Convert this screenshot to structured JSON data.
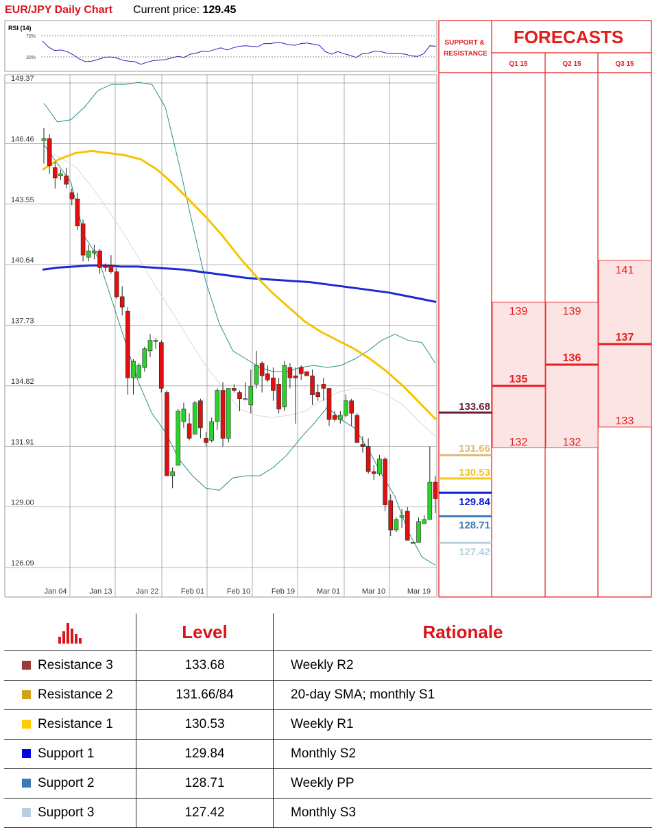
{
  "header": {
    "title": "EUR/JPY Daily Chart",
    "price_label": "Current price:",
    "price_value": "129.45"
  },
  "rsi": {
    "label": "RSI (14)",
    "level_high": "70%",
    "level_low": "30%",
    "values": [
      0.6,
      0.48,
      0.42,
      0.43,
      0.4,
      0.34,
      0.26,
      0.21,
      0.22,
      0.25,
      0.29,
      0.3,
      0.28,
      0.24,
      0.22,
      0.21,
      0.16,
      0.2,
      0.23,
      0.24,
      0.25,
      0.28,
      0.31,
      0.29,
      0.35,
      0.37,
      0.41,
      0.4,
      0.44,
      0.47,
      0.43,
      0.47,
      0.5,
      0.51,
      0.5,
      0.49,
      0.55,
      0.55,
      0.57,
      0.56,
      0.53,
      0.52,
      0.55,
      0.56,
      0.54,
      0.52,
      0.4,
      0.35,
      0.4,
      0.36,
      0.33,
      0.29,
      0.36,
      0.37,
      0.41,
      0.4,
      0.37,
      0.36,
      0.36,
      0.35,
      0.32,
      0.31,
      0.36,
      0.51,
      0.5
    ]
  },
  "chart_data": {
    "type": "candlestick",
    "title": "EUR/JPY Daily Chart",
    "y_ticks": [
      "149.37",
      "146.46",
      "143.55",
      "140.64",
      "137.73",
      "134.82",
      "131.91",
      "129.00",
      "126.09"
    ],
    "ylim": [
      125.8,
      150.3
    ],
    "x_ticks": [
      "Jan 04",
      "Jan 13",
      "Jan 22",
      "Feb 01",
      "Feb 10",
      "Feb 19",
      "Mar 01",
      "Mar 10",
      "Mar 19"
    ],
    "candles": [
      [
        146.6,
        146.7,
        145.5,
        147.2
      ],
      [
        146.7,
        145.4,
        145.0,
        146.9
      ],
      [
        145.3,
        144.8,
        144.3,
        145.6
      ],
      [
        144.9,
        145.0,
        144.7,
        145.2
      ],
      [
        144.9,
        144.5,
        144.3,
        145.3
      ],
      [
        144.1,
        143.8,
        143.5,
        144.3
      ],
      [
        143.8,
        142.5,
        142.3,
        144.1
      ],
      [
        142.6,
        141.1,
        140.8,
        142.8
      ],
      [
        141.0,
        141.3,
        140.8,
        141.6
      ],
      [
        141.2,
        141.3,
        140.9,
        141.6
      ],
      [
        141.3,
        140.5,
        140.2,
        141.4
      ],
      [
        140.6,
        140.5,
        140.3,
        140.7
      ],
      [
        140.6,
        140.3,
        140.2,
        141.1
      ],
      [
        140.3,
        139.1,
        139.0,
        140.5
      ],
      [
        139.1,
        138.6,
        138.2,
        139.6
      ],
      [
        138.4,
        135.2,
        134.4,
        138.6
      ],
      [
        135.2,
        136.0,
        134.4,
        136.1
      ],
      [
        135.2,
        135.8,
        135.2,
        135.9
      ],
      [
        135.7,
        136.6,
        135.5,
        136.7
      ],
      [
        136.5,
        137.0,
        136.2,
        137.3
      ],
      [
        137.0,
        137.0,
        136.6,
        137.1
      ],
      [
        136.9,
        134.7,
        134.5,
        137.0
      ],
      [
        134.5,
        130.5,
        130.5,
        134.6
      ],
      [
        130.5,
        130.7,
        129.9,
        130.9
      ],
      [
        131.0,
        133.6,
        131.0,
        133.7
      ],
      [
        133.1,
        133.7,
        132.8,
        134.0
      ],
      [
        133.0,
        132.3,
        132.2,
        133.5
      ],
      [
        132.5,
        134.0,
        132.5,
        134.1
      ],
      [
        134.1,
        132.8,
        132.3,
        134.2
      ],
      [
        132.3,
        132.1,
        131.9,
        132.6
      ],
      [
        132.2,
        133.1,
        132.1,
        133.3
      ],
      [
        133.1,
        134.6,
        132.7,
        134.7
      ],
      [
        134.6,
        132.3,
        131.9,
        135.0
      ],
      [
        132.3,
        134.7,
        132.1,
        134.7
      ],
      [
        134.7,
        134.6,
        134.5,
        134.9
      ],
      [
        134.5,
        134.2,
        133.6,
        134.6
      ],
      [
        134.2,
        134.2,
        134.2,
        135.0
      ],
      [
        133.9,
        134.8,
        133.5,
        135.6
      ],
      [
        134.9,
        135.8,
        134.7,
        136.5
      ],
      [
        135.9,
        135.3,
        134.5,
        136.0
      ],
      [
        135.4,
        135.1,
        135.0,
        135.8
      ],
      [
        135.2,
        134.6,
        134.1,
        135.7
      ],
      [
        134.9,
        133.7,
        133.5,
        135.2
      ],
      [
        133.8,
        135.8,
        133.6,
        136.0
      ],
      [
        135.7,
        135.2,
        134.7,
        135.9
      ],
      [
        135.3,
        135.2,
        133.0,
        135.7
      ],
      [
        135.7,
        135.4,
        135.1,
        135.8
      ],
      [
        135.5,
        135.3,
        135.3,
        135.4
      ],
      [
        135.3,
        134.4,
        133.9,
        135.6
      ],
      [
        134.5,
        134.3,
        134.1,
        134.9
      ],
      [
        134.9,
        134.7,
        134.1,
        135.2
      ],
      [
        134.7,
        133.2,
        132.9,
        134.7
      ],
      [
        133.4,
        133.2,
        133.1,
        133.6
      ],
      [
        133.2,
        133.4,
        133.0,
        133.6
      ],
      [
        133.4,
        134.1,
        133.3,
        134.4
      ],
      [
        134.1,
        133.5,
        132.9,
        134.2
      ],
      [
        133.4,
        132.1,
        132.1,
        133.5
      ],
      [
        132.0,
        131.9,
        131.6,
        132.4
      ],
      [
        131.9,
        130.7,
        130.6,
        132.3
      ],
      [
        130.7,
        130.6,
        130.3,
        131.0
      ],
      [
        130.6,
        131.3,
        130.5,
        131.5
      ],
      [
        131.3,
        129.1,
        128.8,
        131.4
      ],
      [
        129.3,
        127.9,
        127.6,
        129.6
      ],
      [
        127.9,
        128.4,
        127.8,
        128.5
      ],
      [
        128.5,
        128.6,
        128.0,
        128.9
      ],
      [
        128.8,
        127.4,
        127.4,
        129.0
      ],
      [
        127.3,
        127.3,
        127.3,
        127.3
      ],
      [
        127.3,
        128.3,
        127.3,
        128.5
      ],
      [
        128.2,
        128.4,
        128.2,
        128.6
      ],
      [
        128.4,
        130.2,
        128.4,
        131.9
      ],
      [
        130.2,
        129.4,
        128.7,
        130.5
      ]
    ],
    "sma_yellow": [
      145.2,
      145.7,
      146.0,
      146.1,
      146.0,
      145.9,
      145.7,
      145.2,
      144.5,
      143.7,
      142.9,
      142.0,
      141.0,
      140.1,
      139.3,
      138.6,
      137.9,
      137.4,
      137.0,
      136.6,
      136.1,
      135.5,
      134.8,
      134.0,
      133.2
    ],
    "sma_blue": [
      140.4,
      140.5,
      140.55,
      140.6,
      140.6,
      140.55,
      140.55,
      140.5,
      140.45,
      140.4,
      140.3,
      140.2,
      140.1,
      140.0,
      139.95,
      139.9,
      139.85,
      139.8,
      139.7,
      139.6,
      139.5,
      139.4,
      139.3,
      139.15,
      139.0,
      138.85
    ],
    "bb_upper": [
      148.4,
      147.5,
      147.6,
      148.2,
      149.0,
      149.3,
      149.3,
      149.4,
      149.3,
      148.2,
      145.5,
      142.6,
      139.8,
      137.8,
      136.5,
      136.1,
      135.7,
      135.5,
      135.5,
      135.7,
      135.8,
      135.7,
      135.8,
      136.1,
      136.5,
      137.0,
      137.3,
      137.0,
      136.9,
      135.9
    ],
    "bb_lower": [
      146.4,
      145.5,
      144.6,
      142.0,
      141.0,
      139.0,
      137.0,
      135.0,
      133.5,
      132.6,
      131.3,
      130.5,
      129.9,
      129.8,
      130.4,
      130.5,
      130.5,
      130.9,
      131.5,
      132.3,
      133.0,
      133.8,
      133.2,
      132.8,
      131.8,
      130.6,
      129.5,
      127.8,
      126.6,
      126.2
    ],
    "bb_mid": [
      146.1,
      145.8,
      145.3,
      144.3,
      143.2,
      142.0,
      140.7,
      139.4,
      138.2,
      136.9,
      135.7,
      134.7,
      133.7,
      133.4,
      133.3,
      133.4,
      133.6,
      134.1,
      134.5,
      134.7,
      134.7,
      134.4,
      133.9,
      133.1,
      132.4
    ]
  },
  "support_resistance": {
    "header": "SUPPORT & RESISTANCE",
    "levels": [
      {
        "value": "133.68",
        "color": "#6b1a33"
      },
      {
        "value": "131.66",
        "color": "#e0b870"
      },
      {
        "value": "130.53",
        "color": "#f5c518"
      },
      {
        "value": "129.84",
        "color": "#0b1bd6"
      },
      {
        "value": "128.71",
        "color": "#3d7ab5"
      },
      {
        "value": "127.42",
        "color": "#b6d2de"
      }
    ]
  },
  "forecasts": {
    "title": "FORECASTS",
    "columns": [
      {
        "label": "Q1 15",
        "high": "139",
        "mid": "135",
        "low": "132"
      },
      {
        "label": "Q2 15",
        "high": "139",
        "mid": "136",
        "low": "132"
      },
      {
        "label": "Q3 15",
        "high": "141",
        "mid": "137",
        "low": "133"
      }
    ]
  },
  "levels_table": {
    "col_level": "Level",
    "col_rationale": "Rationale",
    "rows": [
      {
        "name": "Resistance 3",
        "value": "133.68",
        "rationale": "Weekly R2",
        "color": "#9b3a3a"
      },
      {
        "name": "Resistance 2",
        "value": "131.66/84",
        "rationale": "20-day SMA; monthly S1",
        "color": "#d4a017"
      },
      {
        "name": "Resistance 1",
        "value": "130.53",
        "rationale": "Weekly R1",
        "color": "#ffcc00"
      },
      {
        "name": "Support 1",
        "value": "129.84",
        "rationale": "Monthly S2",
        "color": "#0000e0"
      },
      {
        "name": "Support 2",
        "value": "128.71",
        "rationale": "Weekly PP",
        "color": "#3d7ab5"
      },
      {
        "name": "Support 3",
        "value": "127.42",
        "rationale": "Monthly S3",
        "color": "#b8cce4"
      }
    ]
  }
}
